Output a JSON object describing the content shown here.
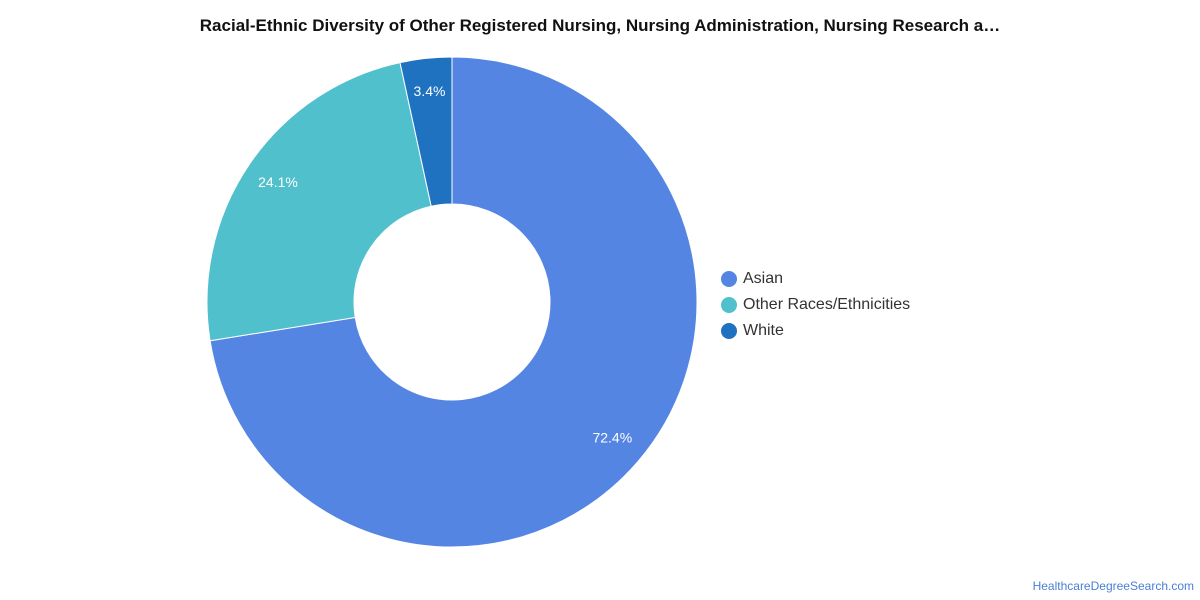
{
  "chart_data": {
    "type": "pie",
    "title": "Racial-Ethnic Diversity of Other Registered Nursing, Nursing Administration, Nursing Research a…",
    "donut": true,
    "categories": [
      "Asian",
      "Other Races/Ethnicities",
      "White"
    ],
    "values": [
      72.4,
      24.1,
      3.4
    ],
    "labels": [
      "72.4%",
      "24.1%",
      "3.4%"
    ],
    "colors": [
      "#5585e3",
      "#50c0cd",
      "#1f72c0"
    ],
    "legend_position": "right"
  },
  "source": "HealthcareDegreeSearch.com"
}
